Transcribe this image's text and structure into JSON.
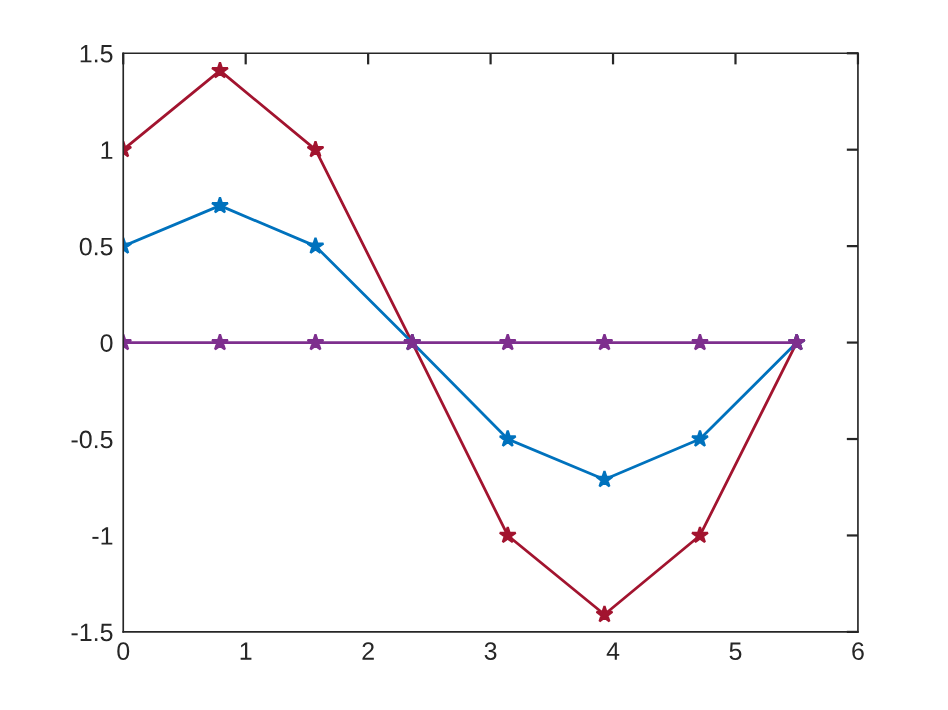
{
  "chart_data": {
    "type": "line",
    "x": [
      0,
      0.79,
      1.57,
      2.36,
      3.14,
      3.93,
      4.71,
      5.5
    ],
    "series": [
      {
        "color": "#a2142f",
        "values": [
          1,
          1.41,
          1,
          0,
          -1,
          -1.41,
          -1,
          0
        ]
      },
      {
        "color": "#0072bd",
        "values": [
          0.5,
          0.71,
          0.5,
          0,
          -0.5,
          -0.71,
          -0.5,
          0
        ]
      },
      {
        "color": "#7e2f8e",
        "values": [
          0,
          0,
          0,
          0,
          0,
          0,
          0,
          0
        ]
      }
    ],
    "xlim": [
      0,
      6
    ],
    "xticks": [
      0,
      1,
      2,
      3,
      4,
      5,
      6
    ],
    "ylim": [
      -1.5,
      1.5
    ],
    "yticks": [
      -1.5,
      -1,
      -0.5,
      0,
      0.5,
      1,
      1.5
    ],
    "marker": "star",
    "line_style": "solid",
    "grid": false,
    "legend": false
  }
}
